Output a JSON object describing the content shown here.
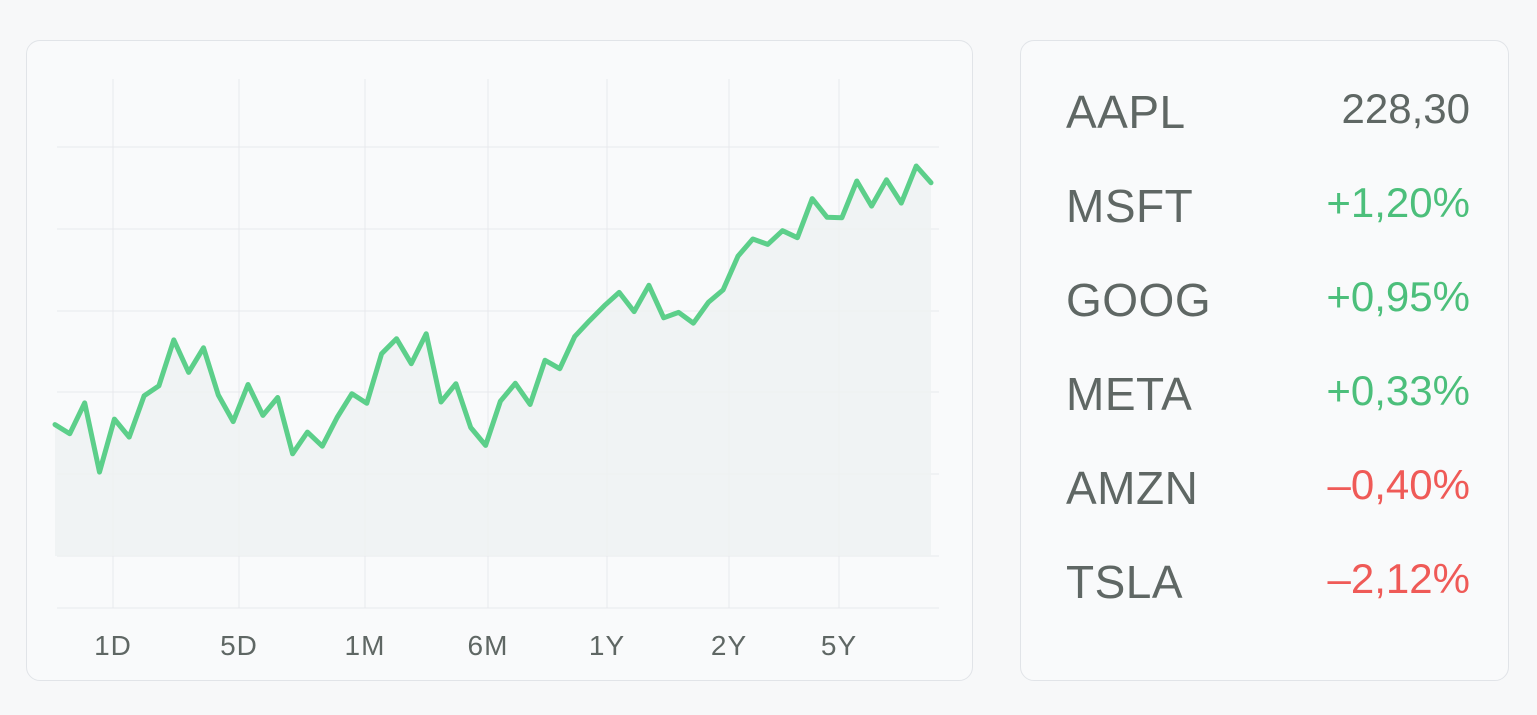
{
  "colors": {
    "accent": "#5ccf8a",
    "up": "#4cbf7b",
    "down": "#ef5a57",
    "neutral": "#5f6764",
    "grid": "#e7e9ec"
  },
  "chart_data": {
    "type": "line",
    "title": "",
    "xlabel": "",
    "ylabel": "",
    "x_tick_labels": [
      "1D",
      "5D",
      "1M",
      "6M",
      "1Y",
      "2Y",
      "5Y"
    ],
    "grid": true,
    "fill": true,
    "ylim": [
      0,
      100
    ],
    "series": [
      {
        "values": [
          30.8,
          28.6,
          36,
          19.4,
          32.1,
          27.8,
          37.7,
          40.1,
          51.1,
          43.3,
          49.2,
          37.9,
          31.5,
          40.4,
          33,
          37.3,
          23.8,
          29,
          25.6,
          32.5,
          38.2,
          35.9,
          47.8,
          51.4,
          45.4,
          52.6,
          36.2,
          40.6,
          30.1,
          25.8,
          36.4,
          40.7,
          35.6,
          46.2,
          44.2,
          51.9,
          55.7,
          59.3,
          62.5,
          57.9,
          64.2,
          56.4,
          57.7,
          55.1,
          60.1,
          63.1,
          71.2,
          75.3,
          74,
          77.3,
          75.6,
          85,
          80.5,
          80.4,
          89.2,
          83.2,
          89.5,
          83.9,
          92.8,
          88.8
        ]
      }
    ]
  },
  "watchlist": [
    {
      "symbol": "AAPL",
      "value": "228,30",
      "trend": "neutral"
    },
    {
      "symbol": "MSFT",
      "value": "+1,20%",
      "trend": "up"
    },
    {
      "symbol": "GOOG",
      "value": "+0,95%",
      "trend": "up"
    },
    {
      "symbol": "META",
      "value": "+0,33%",
      "trend": "up"
    },
    {
      "symbol": "AMZN",
      "value": "–0,40%",
      "trend": "down"
    },
    {
      "symbol": "TSLA",
      "value": "–2,12%",
      "trend": "down"
    }
  ]
}
